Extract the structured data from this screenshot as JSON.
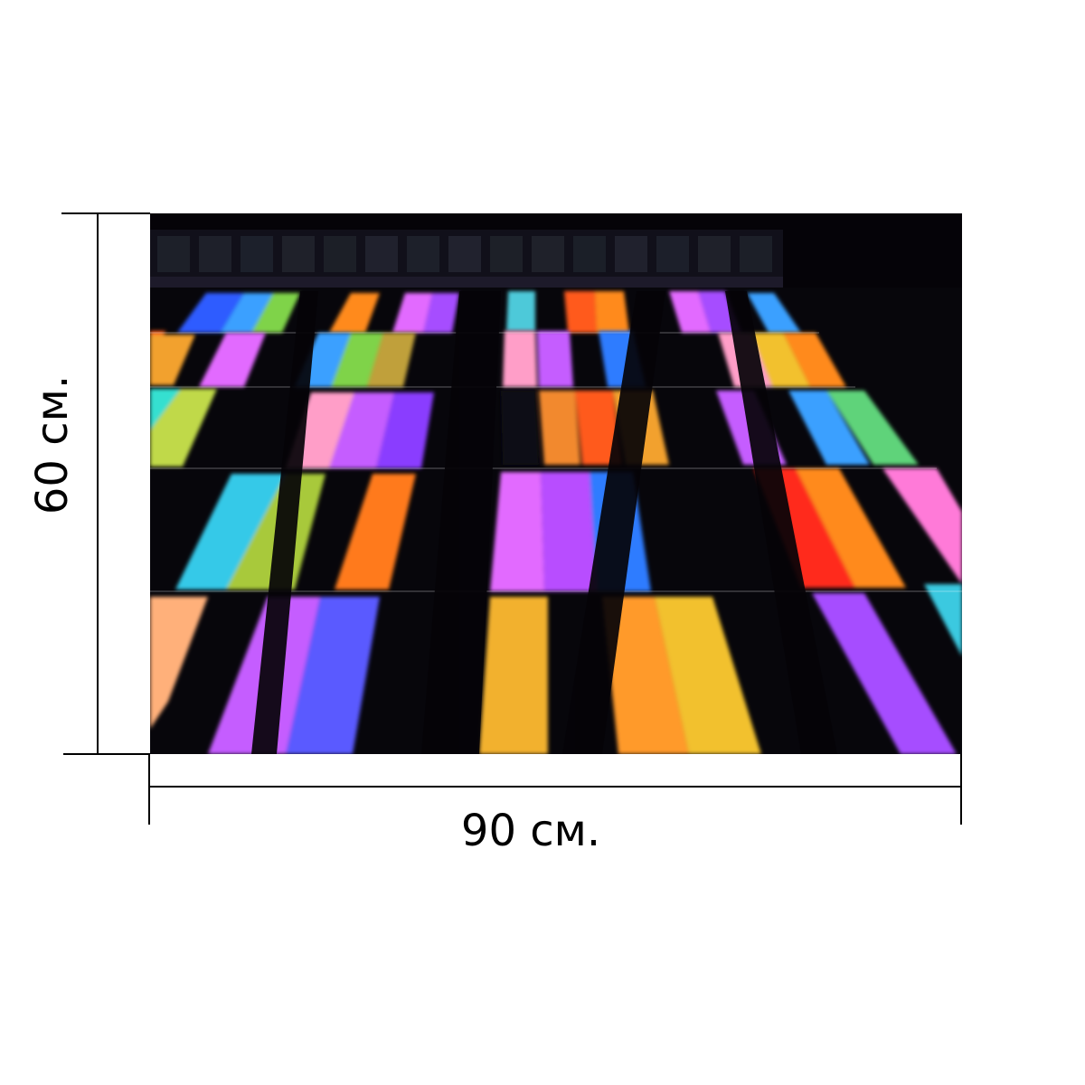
{
  "dimensions": {
    "width_label": "90 см.",
    "height_label": "60 см."
  },
  "photo": {
    "subject": "image",
    "background_color": "#050308",
    "panel_colors": [
      "#2f5cff",
      "#3aa0ff",
      "#7fd34a",
      "#ff8a1e",
      "#e26bff",
      "#a64dff",
      "#4ec9d9",
      "#ff5a1f",
      "#f2c12e",
      "#ff2a1a",
      "#ff9ec8",
      "#8a3dff",
      "#3b6bff",
      "#35e0d0",
      "#c0d94a"
    ]
  }
}
